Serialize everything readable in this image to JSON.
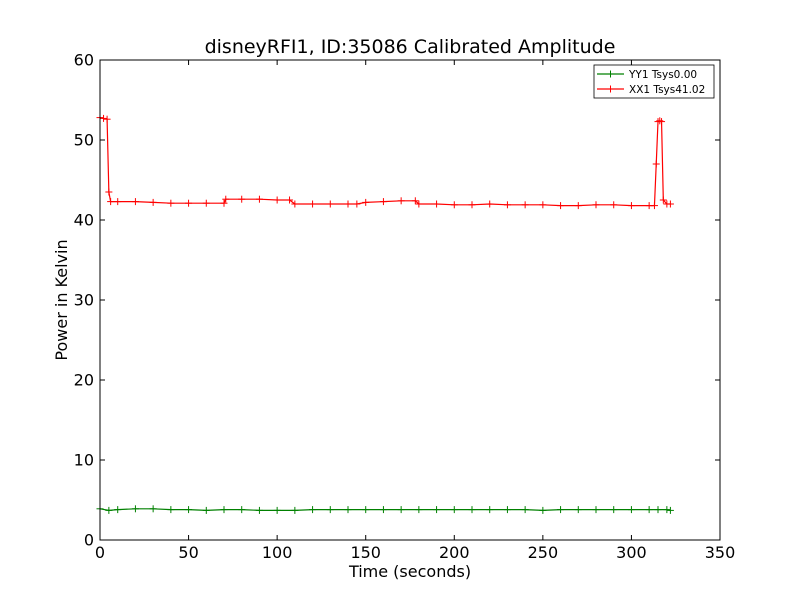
{
  "chart_data": {
    "type": "line",
    "title": "disneyRFI1, ID:35086 Calibrated Amplitude",
    "xlabel": "Time (seconds)",
    "ylabel": "Power in Kelvin",
    "xlim": [
      0,
      350
    ],
    "ylim": [
      0,
      60
    ],
    "xticks": [
      0,
      50,
      100,
      150,
      200,
      250,
      300,
      350
    ],
    "yticks": [
      0,
      10,
      20,
      30,
      40,
      50,
      60
    ],
    "grid": false,
    "legend_position": "top-right",
    "marker": "+",
    "series": [
      {
        "name": "YY1 Tsys0.00",
        "color": "#008000",
        "x": [
          0,
          5,
          10,
          20,
          30,
          40,
          50,
          60,
          70,
          80,
          90,
          100,
          110,
          120,
          130,
          140,
          150,
          160,
          170,
          180,
          190,
          200,
          210,
          220,
          230,
          240,
          250,
          260,
          270,
          280,
          290,
          300,
          310,
          315,
          320,
          322
        ],
        "y": [
          3.9,
          3.7,
          3.8,
          3.9,
          3.9,
          3.8,
          3.8,
          3.7,
          3.8,
          3.8,
          3.7,
          3.7,
          3.7,
          3.8,
          3.8,
          3.8,
          3.8,
          3.8,
          3.8,
          3.8,
          3.8,
          3.8,
          3.8,
          3.8,
          3.8,
          3.8,
          3.7,
          3.8,
          3.8,
          3.8,
          3.8,
          3.8,
          3.8,
          3.8,
          3.8,
          3.7
        ]
      },
      {
        "name": "XX1 Tsys41.02",
        "color": "#ff0000",
        "x": [
          0,
          2,
          4,
          5,
          6,
          10,
          20,
          30,
          40,
          50,
          60,
          70,
          71,
          80,
          90,
          100,
          107,
          110,
          120,
          130,
          140,
          145,
          150,
          160,
          170,
          178,
          180,
          190,
          200,
          210,
          220,
          230,
          240,
          250,
          260,
          270,
          280,
          290,
          300,
          310,
          313,
          314,
          315,
          316,
          317,
          318,
          320,
          322
        ],
        "y": [
          52.8,
          52.7,
          52.6,
          43.5,
          42.3,
          42.3,
          42.3,
          42.2,
          42.1,
          42.1,
          42.1,
          42.1,
          42.6,
          42.6,
          42.6,
          42.5,
          42.5,
          42.0,
          42.0,
          42.0,
          42.0,
          42.0,
          42.2,
          42.3,
          42.4,
          42.4,
          42.0,
          42.0,
          41.9,
          41.9,
          42.0,
          41.9,
          41.9,
          41.9,
          41.8,
          41.8,
          41.9,
          41.9,
          41.8,
          41.8,
          41.8,
          47.0,
          52.3,
          52.4,
          52.3,
          42.5,
          42.0,
          42.0
        ]
      }
    ]
  }
}
